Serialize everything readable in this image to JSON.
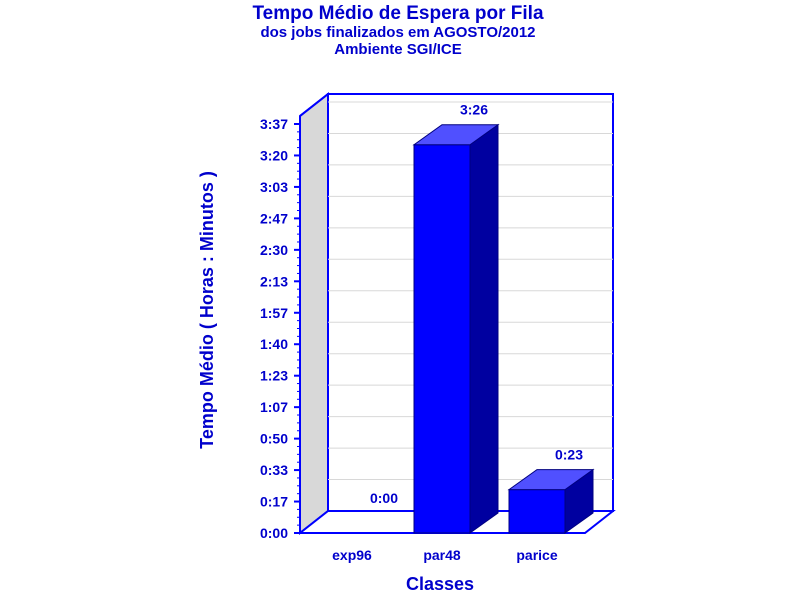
{
  "chart_data": {
    "type": "bar",
    "title": "Tempo Médio de Espera por Fila",
    "subtitle_lines": [
      "dos jobs finalizados em AGOSTO/2012",
      "Ambiente SGI/ICE"
    ],
    "xlabel": "Classes",
    "ylabel": "Tempo Médio ( Horas : Minutos )",
    "categories": [
      "exp96",
      "par48",
      "parice"
    ],
    "values": [
      0,
      206,
      23
    ],
    "value_labels": [
      "0:00",
      "3:26",
      "0:23"
    ],
    "y_ticks": [
      "0:00",
      "0:17",
      "0:33",
      "0:50",
      "1:07",
      "1:23",
      "1:40",
      "1:57",
      "2:13",
      "2:30",
      "2:47",
      "3:03",
      "3:20",
      "3:37"
    ],
    "ylim": [
      0,
      230
    ],
    "grid": true,
    "legend": "none",
    "colors": {
      "bar_front": "#0000ff",
      "bar_top": "#5050ff",
      "bar_side": "#0000a0",
      "text": "#0000cc",
      "wall": "#d8d8d8",
      "frame": "#0000ff"
    }
  }
}
